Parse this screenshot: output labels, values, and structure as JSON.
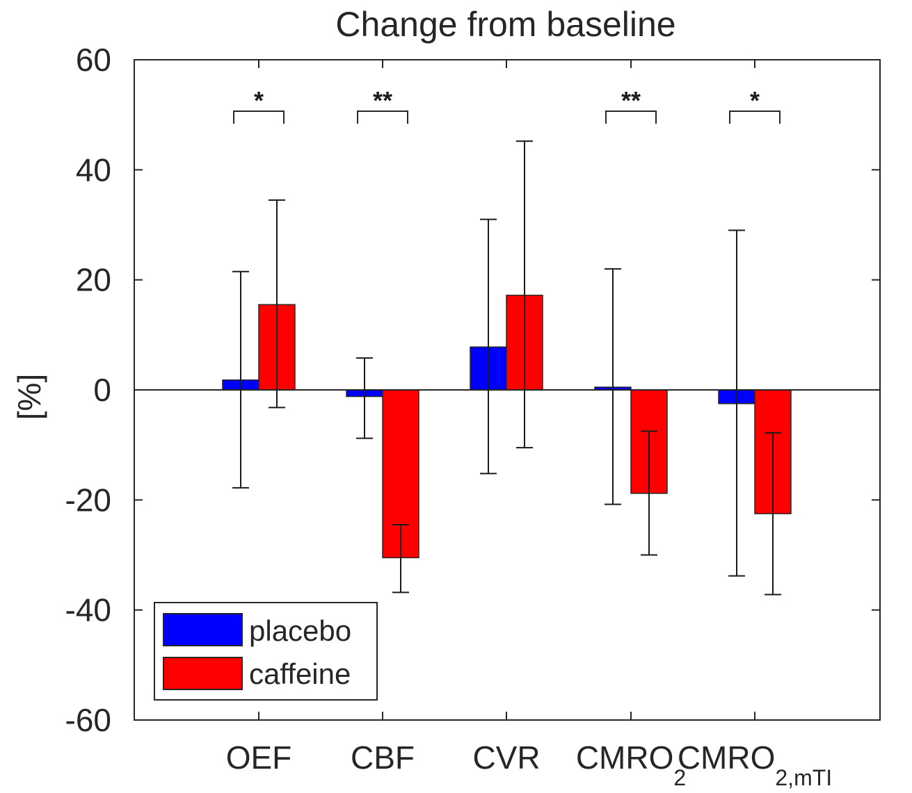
{
  "chart_data": {
    "type": "bar",
    "title": "Change from baseline",
    "ylabel": "[%]",
    "xlabel": "",
    "ylim": [
      -60,
      60
    ],
    "yticks": [
      "-60",
      "-40",
      "-20",
      "0",
      "20",
      "40",
      "60"
    ],
    "categories": [
      {
        "label": "OEF",
        "sub": ""
      },
      {
        "label": "CBF",
        "sub": ""
      },
      {
        "label": "CVR",
        "sub": ""
      },
      {
        "label": "CMRO",
        "sub": "2"
      },
      {
        "label": "CMRO",
        "sub": "2,mTI"
      }
    ],
    "series": [
      {
        "name": "placebo",
        "color": "#0000ff",
        "values": [
          1.8,
          -1.2,
          7.8,
          0.5,
          -2.5
        ],
        "err_low": [
          -17.8,
          -8.8,
          -15.2,
          -20.8,
          -33.8
        ],
        "err_high": [
          21.5,
          5.8,
          31.0,
          22.0,
          29.0
        ]
      },
      {
        "name": "caffeine",
        "color": "#ff0000",
        "values": [
          15.5,
          -30.5,
          17.2,
          -18.8,
          -22.5
        ],
        "err_low": [
          -3.2,
          -36.8,
          -10.5,
          -30.0,
          -37.2
        ],
        "err_high": [
          34.5,
          -24.5,
          45.2,
          -7.5,
          -7.8
        ]
      }
    ],
    "significance": [
      {
        "category": 0,
        "label": "*"
      },
      {
        "category": 1,
        "label": "**"
      },
      {
        "category": 3,
        "label": "**"
      },
      {
        "category": 4,
        "label": "*"
      }
    ],
    "legend_position": "bottom-left",
    "grid": false
  }
}
